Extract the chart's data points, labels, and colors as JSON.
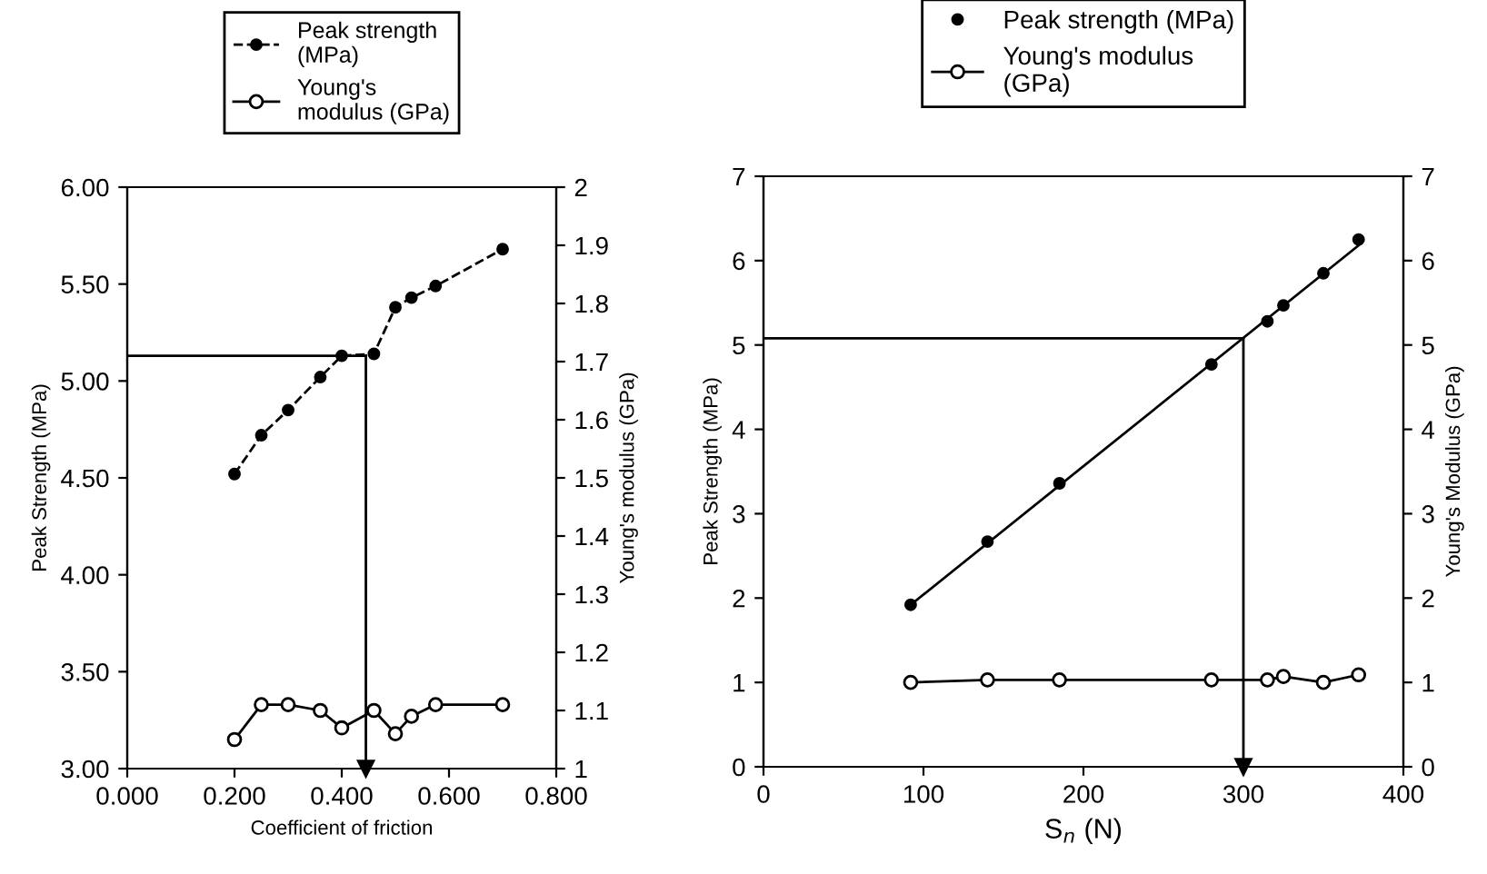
{
  "chart_data": [
    {
      "type": "line",
      "xlabel": "Coefficient of friction",
      "ylabel": "Peak Strength (MPa)",
      "y2label": "Young's modulus (GPa)",
      "xlim": [
        0,
        0.8
      ],
      "xticks": [
        {
          "value": 0,
          "label": "0.000"
        },
        {
          "value": 0.2,
          "label": "0.200"
        },
        {
          "value": 0.4,
          "label": "0.400"
        },
        {
          "value": 0.6,
          "label": "0.600"
        },
        {
          "value": 0.8,
          "label": "0.800"
        }
      ],
      "ylim": [
        3,
        6
      ],
      "yticks": [
        {
          "value": 3,
          "label": "3.00"
        },
        {
          "value": 3.5,
          "label": "3.50"
        },
        {
          "value": 4,
          "label": "4.00"
        },
        {
          "value": 4.5,
          "label": "4.50"
        },
        {
          "value": 5,
          "label": "5.00"
        },
        {
          "value": 5.5,
          "label": "5.50"
        },
        {
          "value": 6,
          "label": "6.00"
        }
      ],
      "y2lim": [
        1,
        2
      ],
      "y2ticks": [
        1,
        1.1,
        1.2,
        1.3,
        1.4,
        1.5,
        1.6,
        1.7,
        1.8,
        1.9,
        2
      ],
      "grid": false,
      "legend": "top",
      "ref_lines": [
        {
          "axis": "y",
          "value": 5.13,
          "color": "#000000"
        },
        {
          "axis": "x",
          "value": 0.445,
          "color": "#000000"
        }
      ],
      "series": [
        {
          "name": "Peak strength\n(MPa)",
          "color": "#000000",
          "marker": "circle",
          "line_style": "dashed",
          "x": [
            0.2,
            0.25,
            0.3,
            0.36,
            0.4,
            0.46,
            0.5,
            0.53,
            0.575,
            0.7
          ],
          "values": [
            4.52,
            4.72,
            4.85,
            5.02,
            5.13,
            5.14,
            5.38,
            5.43,
            5.49,
            5.68
          ]
        },
        {
          "name": "Young's\nmodulus (GPa)",
          "axis": "y2",
          "color": "#000000",
          "marker": "circle",
          "line_style": "solid",
          "x": [
            0.2,
            0.25,
            0.3,
            0.36,
            0.4,
            0.46,
            0.5,
            0.53,
            0.575,
            0.7
          ],
          "values": [
            1.05,
            1.11,
            1.11,
            1.1,
            1.07,
            1.1,
            1.06,
            1.09,
            1.11,
            1.11
          ]
        }
      ]
    },
    {
      "type": "line",
      "xlabel": "S$_{n}$ (N)",
      "ylabel": "Peak Strength (MPa)",
      "y2label": "Young's Modulus (GPa)",
      "xlim": [
        0,
        400
      ],
      "xticks": [
        0,
        100,
        200,
        300,
        400
      ],
      "ylim": [
        0,
        7
      ],
      "yticks": [
        0,
        1,
        2,
        3,
        4,
        5,
        6,
        7
      ],
      "y2lim": [
        0,
        7
      ],
      "y2ticks": [
        0,
        1,
        2,
        3,
        4,
        5,
        6,
        7
      ],
      "grid": false,
      "legend": "top",
      "ref_lines": [
        {
          "axis": "y",
          "value": 5.08,
          "color": "#000000"
        },
        {
          "axis": "x",
          "value": 300,
          "color": "#000000"
        }
      ],
      "series": [
        {
          "name": "Peak strength (MPa)",
          "type": "scatter",
          "color": "#000000",
          "marker": "circle",
          "x": [
            92,
            140,
            185,
            280,
            315,
            325,
            350,
            372
          ],
          "values": [
            1.92,
            2.67,
            3.36,
            4.77,
            5.28,
            5.47,
            5.85,
            6.25
          ]
        },
        {
          "color": "#000000",
          "marker": "none",
          "line_style": "solid",
          "x": [
            92,
            372
          ],
          "values": [
            1.92,
            6.18
          ]
        },
        {
          "name": "Young's modulus\n(GPa)",
          "axis": "y2",
          "color": "#000000",
          "marker": "circle",
          "line_style": "solid",
          "x": [
            92,
            140,
            185,
            280,
            315,
            325,
            350,
            372
          ],
          "values": [
            1.0,
            1.03,
            1.03,
            1.03,
            1.03,
            1.07,
            1.0,
            1.09
          ]
        }
      ]
    }
  ]
}
